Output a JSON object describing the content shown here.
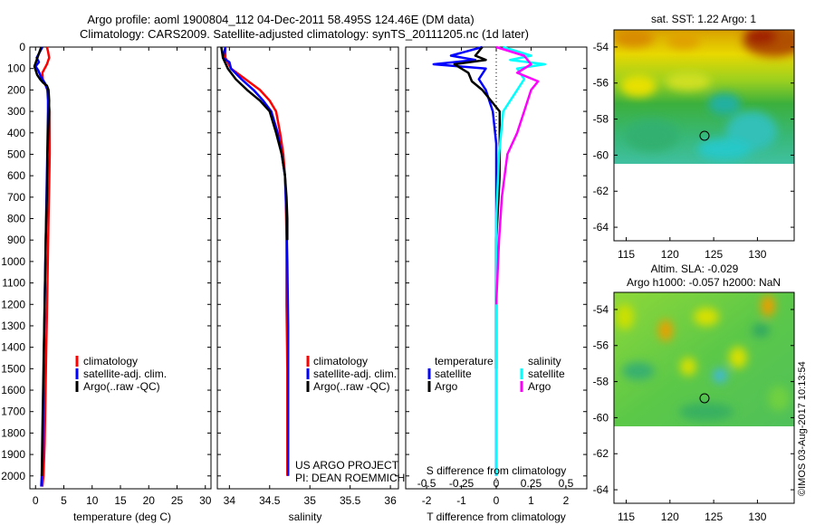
{
  "header": {
    "line1": "Argo profile: aoml 1900804_112 04-Dec-2011 58.495S 124.46E (DM data)",
    "line2": "Climatology: CARS2009. Satellite-adjusted climatology: synTS_20111205.nc (1d later)"
  },
  "colors": {
    "climatology": "#ff0000",
    "satellite": "#0000ff",
    "argo": "#000000",
    "sat_salinity": "#00ffff",
    "argo_salinity": "#ff00ff"
  },
  "depth_ticks": [
    "0",
    "100",
    "200",
    "300",
    "400",
    "500",
    "600",
    "700",
    "800",
    "900",
    "1000",
    "1100",
    "1200",
    "1300",
    "1400",
    "1500",
    "1600",
    "1700",
    "1800",
    "1900",
    "2000"
  ],
  "panel_temp": {
    "xlabel": "temperature (deg C)",
    "xticks": [
      "0",
      "5",
      "10",
      "15",
      "20",
      "25",
      "30"
    ],
    "legend": [
      "climatology",
      "satellite-adj. clim.",
      "Argo(..raw -QC)"
    ]
  },
  "panel_sal": {
    "xlabel": "salinity",
    "xticks": [
      "34",
      "34.5",
      "35",
      "35.5",
      "36"
    ],
    "legend": [
      "climatology",
      "satellite-adj. clim.",
      "Argo(..raw -QC)"
    ],
    "project": "US ARGO PROJECT",
    "pi": "PI: DEAN ROEMMICH"
  },
  "panel_diff": {
    "legend_t_head": "temperature",
    "legend_s_head": "salinity",
    "legend_t": [
      "satellite",
      "Argo"
    ],
    "legend_s": [
      "satellite",
      "Argo"
    ],
    "s_label": "S difference from climatology",
    "s_ticks": [
      "-0.5",
      "-0.25",
      "0",
      "0.25",
      "0.5"
    ],
    "t_label": "T difference from climatology",
    "t_ticks": [
      "-2",
      "-1",
      "0",
      "1",
      "2"
    ]
  },
  "map_sst": {
    "title": "sat. SST: 1.22  Argo: 1",
    "lat_ticks": [
      "-54",
      "-56",
      "-58",
      "-60",
      "-62",
      "-64"
    ],
    "lon_ticks": [
      "115",
      "120",
      "125",
      "130"
    ]
  },
  "map_sla": {
    "title1": "Altim. SLA: -0.029",
    "title2": "Argo h1000: -0.057  h2000: NaN",
    "lat_ticks": [
      "-54",
      "-56",
      "-58",
      "-60",
      "-62",
      "-64"
    ],
    "lon_ticks": [
      "115",
      "120",
      "125",
      "130"
    ]
  },
  "stamp": "©IMOS 03-Aug-2017 10:13:54",
  "chart_data": [
    {
      "type": "line",
      "ylabel": "",
      "xlabel": "temperature (deg C)",
      "xlim": [
        -1,
        31
      ],
      "ylim": [
        2060,
        0
      ],
      "series": [
        {
          "name": "climatology",
          "color": "#ff0000",
          "x": [
            2.0,
            2.2,
            2.4,
            2.0,
            1.2,
            1.3,
            1.8,
            2.1,
            2.3,
            2.5,
            2.5,
            2.5,
            2.4,
            2.3,
            2.2,
            2.1,
            2.0,
            1.9,
            1.8,
            1.7,
            1.6,
            1.4,
            1.2
          ],
          "y": [
            0,
            20,
            50,
            80,
            120,
            160,
            180,
            200,
            250,
            300,
            400,
            500,
            650,
            800,
            950,
            1100,
            1250,
            1400,
            1550,
            1700,
            1850,
            2000,
            2050
          ]
        },
        {
          "name": "satellite-adj. clim.",
          "color": "#0000ff",
          "x": [
            1.2,
            0.2,
            0.6,
            0.0,
            0.5,
            1.0,
            1.7,
            2.1,
            2.2,
            2.2,
            2.1,
            2.0,
            1.9,
            1.8,
            1.7,
            1.6,
            1.5,
            1.4,
            1.3,
            1.2,
            1.1,
            1.0
          ],
          "y": [
            0,
            50,
            70,
            90,
            110,
            140,
            170,
            200,
            250,
            300,
            450,
            600,
            750,
            900,
            1050,
            1200,
            1400,
            1600,
            1800,
            1950,
            2000,
            2050
          ]
        },
        {
          "name": "Argo(..raw -QC)",
          "color": "#000000",
          "x": [
            1.0,
            -0.2,
            0.3,
            0.8,
            1.3,
            2.0,
            2.3,
            2.4,
            2.3,
            2.1,
            2.0,
            1.8,
            1.6,
            1.4,
            1.2,
            1.1
          ],
          "y": [
            0,
            90,
            130,
            150,
            165,
            180,
            200,
            250,
            350,
            500,
            700,
            900,
            1200,
            1500,
            1800,
            2000
          ]
        }
      ]
    },
    {
      "type": "line",
      "xlabel": "salinity",
      "xlim": [
        33.85,
        36.1
      ],
      "ylim": [
        2060,
        0
      ],
      "series": [
        {
          "name": "climatology",
          "color": "#ff0000",
          "x": [
            33.95,
            33.95,
            34.02,
            34.2,
            34.38,
            34.5,
            34.58,
            34.63,
            34.67,
            34.69,
            34.7,
            34.71,
            34.71,
            34.72,
            34.72,
            34.72
          ],
          "y": [
            0,
            50,
            100,
            150,
            200,
            250,
            300,
            400,
            500,
            600,
            700,
            900,
            1200,
            1500,
            1800,
            2000
          ]
        },
        {
          "name": "satellite-adj. clim.",
          "color": "#0000ff",
          "x": [
            33.95,
            33.92,
            34.0,
            34.02,
            34.15,
            34.3,
            34.42,
            34.52,
            34.6,
            34.65,
            34.69,
            34.71,
            34.72,
            34.73,
            34.73,
            34.73
          ],
          "y": [
            0,
            50,
            70,
            100,
            150,
            200,
            250,
            300,
            400,
            500,
            600,
            800,
            1000,
            1300,
            1700,
            2000
          ]
        },
        {
          "name": "Argo(..raw -QC)",
          "color": "#000000",
          "x": [
            33.9,
            33.92,
            33.98,
            34.08,
            34.22,
            34.38,
            34.5,
            34.58,
            34.65,
            34.69,
            34.71,
            34.72,
            34.72
          ],
          "y": [
            0,
            50,
            100,
            150,
            200,
            250,
            300,
            400,
            500,
            600,
            700,
            800,
            900
          ]
        }
      ]
    },
    {
      "type": "line",
      "xlabel": "T difference from climatology",
      "x2label": "S difference from climatology",
      "xlim": [
        -2.6,
        2.6
      ],
      "x2lim": [
        -0.65,
        0.65
      ],
      "ylim": [
        2060,
        0
      ],
      "series": [
        {
          "name": "temperature satellite",
          "color": "#0000ff",
          "axis": "T",
          "x": [
            -0.4,
            -1.3,
            -0.6,
            -1.8,
            -0.3,
            -0.5,
            -0.3,
            -0.1,
            0.0,
            0.0,
            0.0,
            0.0,
            0.0
          ],
          "y": [
            0,
            40,
            60,
            80,
            100,
            150,
            200,
            300,
            450,
            600,
            800,
            1200,
            2000
          ]
        },
        {
          "name": "temperature Argo",
          "color": "#000000",
          "axis": "T",
          "x": [
            -0.4,
            -0.6,
            -0.3,
            -1.2,
            -0.8,
            -0.7,
            -0.4,
            0.1,
            0.1,
            0.1,
            0.0,
            0.0,
            0.0
          ],
          "y": [
            0,
            40,
            60,
            80,
            120,
            160,
            200,
            300,
            400,
            600,
            900,
            1200,
            1500
          ]
        },
        {
          "name": "salinity satellite",
          "color": "#00ffff",
          "axis": "S",
          "x": [
            0.05,
            0.25,
            0.1,
            0.35,
            0.15,
            0.2,
            0.15,
            0.05,
            0.02,
            0.0,
            0.0
          ],
          "y": [
            0,
            40,
            60,
            80,
            100,
            150,
            200,
            300,
            500,
            800,
            2000
          ]
        },
        {
          "name": "salinity Argo",
          "color": "#ff00ff",
          "axis": "S",
          "x": [
            0.0,
            0.2,
            0.25,
            0.15,
            0.3,
            0.25,
            0.2,
            0.15,
            0.08,
            0.04,
            0.02,
            0.0
          ],
          "y": [
            0,
            40,
            80,
            120,
            160,
            200,
            300,
            400,
            500,
            700,
            900,
            1200
          ]
        }
      ]
    }
  ]
}
